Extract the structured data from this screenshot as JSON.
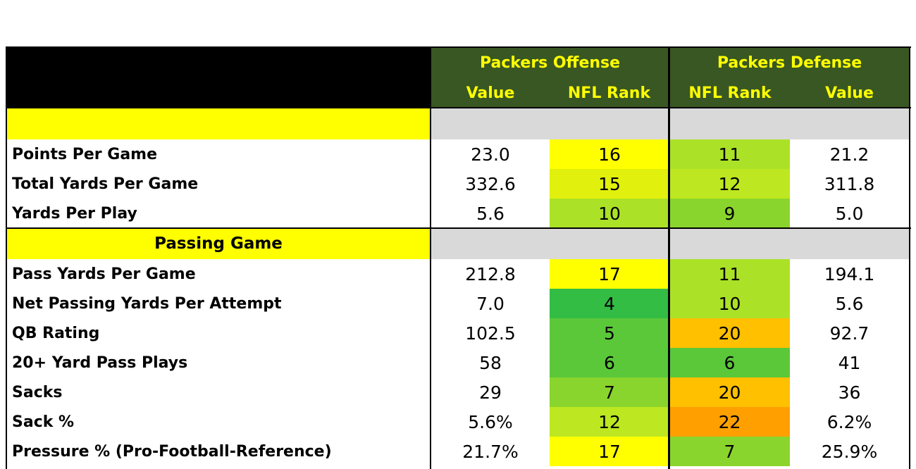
{
  "header": {
    "offense_title": "Packers Offense",
    "defense_title": "Packers Defense",
    "offense_cols": [
      "Value",
      "NFL Rank"
    ],
    "defense_cols": [
      "NFL Rank",
      "Value"
    ]
  },
  "colors": {
    "header_bg": "#385723",
    "header_text": "#ffff00",
    "section_bg": "#ffff00",
    "section_band": "#d9d9d9",
    "rank_scale_best_to_worst": [
      "#33bd45",
      "#5bc83a",
      "#8ad52d",
      "#abe227",
      "#bde720",
      "#e1f00c",
      "#ffff00",
      "#ffc000",
      "#ffa000"
    ]
  },
  "sections": [
    {
      "title": "",
      "rows": [
        {
          "label": "Points Per Game",
          "off_value": "23.0",
          "off_rank": "16",
          "def_rank": "11",
          "def_value": "21.2"
        },
        {
          "label": "Total Yards Per Game",
          "off_value": "332.6",
          "off_rank": "15",
          "def_rank": "12",
          "def_value": "311.8"
        },
        {
          "label": "Yards Per Play",
          "off_value": "5.6",
          "off_rank": "10",
          "def_rank": "9",
          "def_value": "5.0"
        }
      ]
    },
    {
      "title": "Passing Game",
      "rows": [
        {
          "label": "Pass Yards Per Game",
          "off_value": "212.8",
          "off_rank": "17",
          "def_rank": "11",
          "def_value": "194.1"
        },
        {
          "label": "Net Passing Yards Per Attempt",
          "off_value": "7.0",
          "off_rank": "4",
          "def_rank": "10",
          "def_value": "5.6"
        },
        {
          "label": "QB Rating",
          "off_value": "102.5",
          "off_rank": "5",
          "def_rank": "20",
          "def_value": "92.7"
        },
        {
          "label": "20+ Yard Pass Plays",
          "off_value": "58",
          "off_rank": "6",
          "def_rank": "6",
          "def_value": "41"
        },
        {
          "label": "Sacks",
          "off_value": "29",
          "off_rank": "7",
          "def_rank": "20",
          "def_value": "36"
        },
        {
          "label": "Sack %",
          "off_value": "5.6%",
          "off_rank": "12",
          "def_rank": "22",
          "def_value": "6.2%"
        },
        {
          "label": "Pressure % (Pro-Football-Reference)",
          "off_value": "21.7%",
          "off_rank": "17",
          "def_rank": "7",
          "def_value": "25.9%"
        }
      ]
    }
  ]
}
